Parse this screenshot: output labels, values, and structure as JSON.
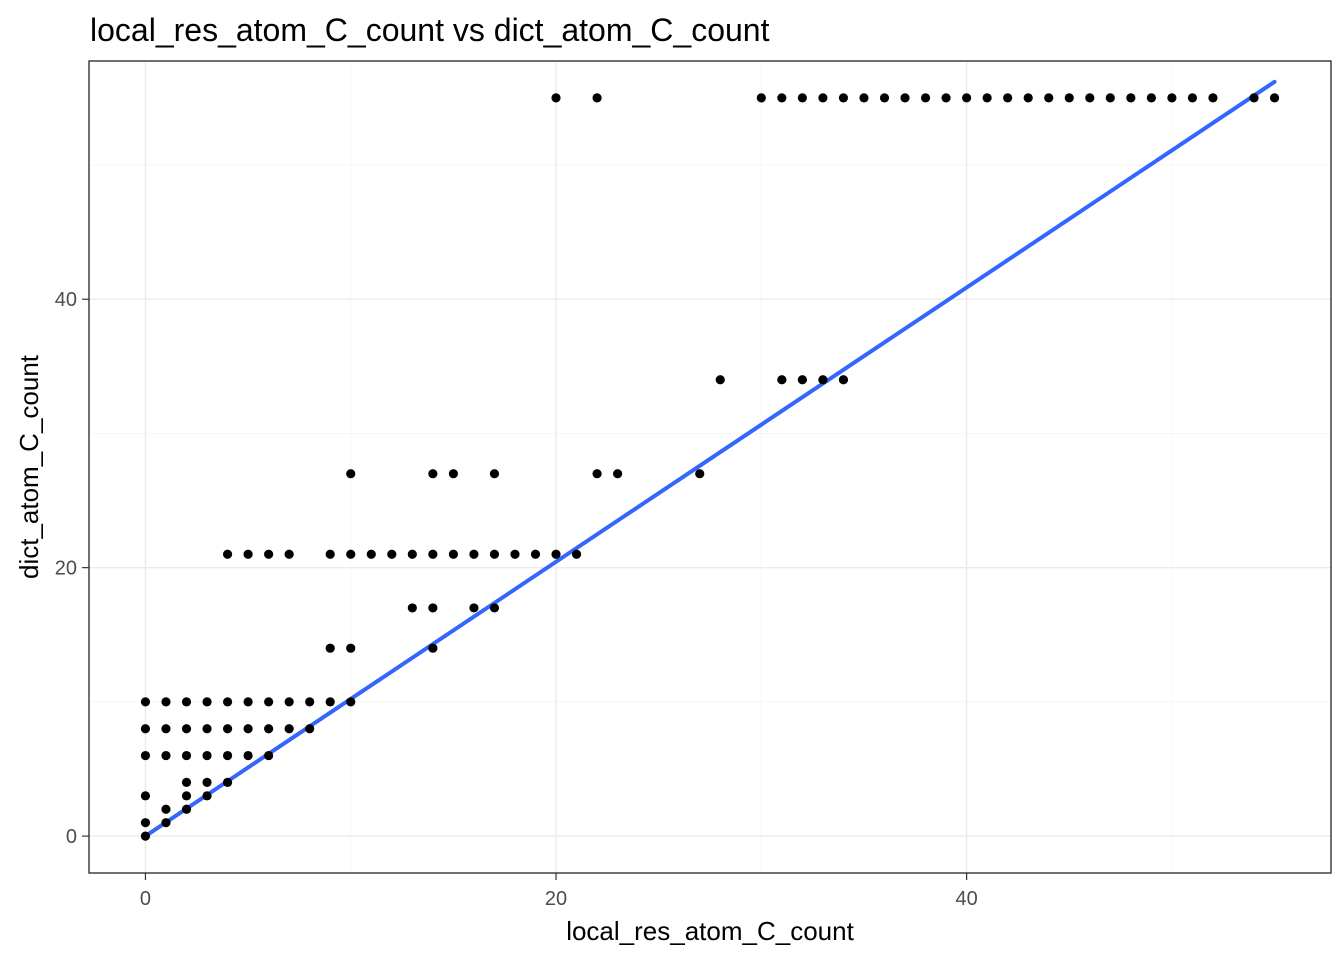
{
  "chart_data": {
    "type": "scatter",
    "title": "local_res_atom_C_count vs dict_atom_C_count",
    "xlabel": "local_res_atom_C_count",
    "ylabel": "dict_atom_C_count",
    "xlim": [
      -2.75,
      57.75
    ],
    "ylim": [
      -2.75,
      57.75
    ],
    "x_ticks": [
      0,
      20,
      40
    ],
    "y_ticks": [
      0,
      20,
      40
    ],
    "x_tick_labels": [
      "0",
      "20",
      "40"
    ],
    "y_tick_labels": [
      "0",
      "20",
      "40"
    ],
    "grid": true,
    "legend": "none",
    "point_color": "#000000",
    "fit_line": {
      "method": "linear",
      "color": "#3366ff",
      "x": [
        0,
        55
      ],
      "y": [
        0,
        56.2
      ]
    },
    "points": [
      [
        0,
        0
      ],
      [
        0,
        1
      ],
      [
        0,
        3
      ],
      [
        0,
        6
      ],
      [
        0,
        8
      ],
      [
        0,
        10
      ],
      [
        1,
        1
      ],
      [
        1,
        2
      ],
      [
        1,
        6
      ],
      [
        1,
        8
      ],
      [
        1,
        10
      ],
      [
        2,
        2
      ],
      [
        2,
        3
      ],
      [
        2,
        4
      ],
      [
        2,
        6
      ],
      [
        2,
        8
      ],
      [
        2,
        10
      ],
      [
        3,
        3
      ],
      [
        3,
        4
      ],
      [
        3,
        6
      ],
      [
        3,
        8
      ],
      [
        3,
        10
      ],
      [
        4,
        4
      ],
      [
        4,
        6
      ],
      [
        4,
        8
      ],
      [
        4,
        10
      ],
      [
        4,
        21
      ],
      [
        5,
        6
      ],
      [
        5,
        8
      ],
      [
        5,
        10
      ],
      [
        5,
        21
      ],
      [
        6,
        6
      ],
      [
        6,
        8
      ],
      [
        6,
        10
      ],
      [
        6,
        21
      ],
      [
        7,
        8
      ],
      [
        7,
        10
      ],
      [
        7,
        21
      ],
      [
        8,
        8
      ],
      [
        8,
        10
      ],
      [
        9,
        10
      ],
      [
        9,
        14
      ],
      [
        9,
        21
      ],
      [
        10,
        10
      ],
      [
        10,
        14
      ],
      [
        10,
        21
      ],
      [
        10,
        27
      ],
      [
        11,
        21
      ],
      [
        12,
        21
      ],
      [
        13,
        17
      ],
      [
        13,
        21
      ],
      [
        14,
        14
      ],
      [
        14,
        17
      ],
      [
        14,
        21
      ],
      [
        14,
        27
      ],
      [
        15,
        21
      ],
      [
        15,
        27
      ],
      [
        16,
        17
      ],
      [
        16,
        21
      ],
      [
        17,
        17
      ],
      [
        17,
        21
      ],
      [
        17,
        27
      ],
      [
        18,
        21
      ],
      [
        19,
        21
      ],
      [
        20,
        21
      ],
      [
        20,
        55
      ],
      [
        21,
        21
      ],
      [
        22,
        27
      ],
      [
        22,
        55
      ],
      [
        23,
        27
      ],
      [
        27,
        27
      ],
      [
        28,
        34
      ],
      [
        30,
        55
      ],
      [
        31,
        34
      ],
      [
        31,
        55
      ],
      [
        32,
        34
      ],
      [
        32,
        55
      ],
      [
        33,
        34
      ],
      [
        33,
        55
      ],
      [
        34,
        34
      ],
      [
        34,
        55
      ],
      [
        35,
        55
      ],
      [
        36,
        55
      ],
      [
        37,
        55
      ],
      [
        38,
        55
      ],
      [
        39,
        55
      ],
      [
        40,
        55
      ],
      [
        41,
        55
      ],
      [
        42,
        55
      ],
      [
        43,
        55
      ],
      [
        44,
        55
      ],
      [
        45,
        55
      ],
      [
        46,
        55
      ],
      [
        47,
        55
      ],
      [
        48,
        55
      ],
      [
        49,
        55
      ],
      [
        50,
        55
      ],
      [
        51,
        55
      ],
      [
        52,
        55
      ],
      [
        54,
        55
      ],
      [
        55,
        55
      ]
    ]
  }
}
